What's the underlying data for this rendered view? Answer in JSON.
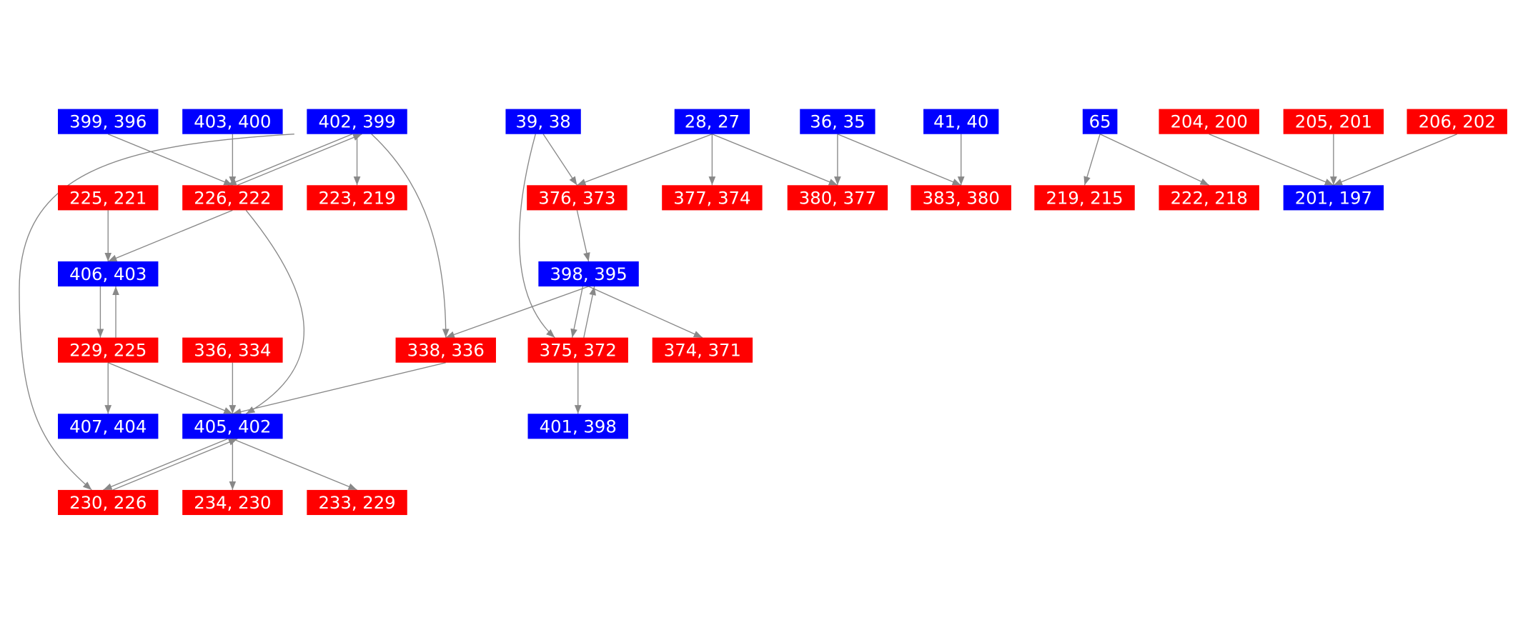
{
  "nodes": [
    {
      "label": "399, 396",
      "color": "#0000ff"
    },
    {
      "label": "403, 400",
      "color": "#0000ff"
    },
    {
      "label": "402, 399",
      "color": "#0000ff"
    },
    {
      "label": "39, 38",
      "color": "#0000ff"
    },
    {
      "label": "28, 27",
      "color": "#0000ff"
    },
    {
      "label": "36, 35",
      "color": "#0000ff"
    },
    {
      "label": "41, 40",
      "color": "#0000ff"
    },
    {
      "label": "65",
      "color": "#0000ff"
    },
    {
      "label": "204, 200",
      "color": "#ff0000"
    },
    {
      "label": "205, 201",
      "color": "#ff0000"
    },
    {
      "label": "206, 202",
      "color": "#ff0000"
    },
    {
      "label": "225, 221",
      "color": "#ff0000"
    },
    {
      "label": "226, 222",
      "color": "#ff0000"
    },
    {
      "label": "223, 219",
      "color": "#ff0000"
    },
    {
      "label": "376, 373",
      "color": "#ff0000"
    },
    {
      "label": "377, 374",
      "color": "#ff0000"
    },
    {
      "label": "380, 377",
      "color": "#ff0000"
    },
    {
      "label": "383, 380",
      "color": "#ff0000"
    },
    {
      "label": "219, 215",
      "color": "#ff0000"
    },
    {
      "label": "222, 218",
      "color": "#ff0000"
    },
    {
      "label": "201, 197",
      "color": "#0000ff"
    },
    {
      "label": "406, 403",
      "color": "#0000ff"
    },
    {
      "label": "398, 395",
      "color": "#0000ff"
    },
    {
      "label": "229, 225",
      "color": "#ff0000"
    },
    {
      "label": "336, 334",
      "color": "#ff0000"
    },
    {
      "label": "338, 336",
      "color": "#ff0000"
    },
    {
      "label": "375, 372",
      "color": "#ff0000"
    },
    {
      "label": "374, 371",
      "color": "#ff0000"
    },
    {
      "label": "407, 404",
      "color": "#0000ff"
    },
    {
      "label": "405, 402",
      "color": "#0000ff"
    },
    {
      "label": "401, 398",
      "color": "#0000ff"
    },
    {
      "label": "230, 226",
      "color": "#ff0000"
    },
    {
      "label": "234, 230",
      "color": "#ff0000"
    },
    {
      "label": "233, 229",
      "color": "#ff0000"
    }
  ]
}
